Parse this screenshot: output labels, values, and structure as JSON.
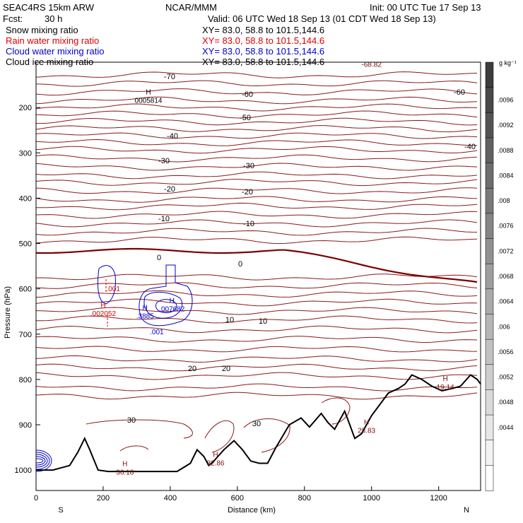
{
  "header": {
    "model": "SEAC4RS 15km ARW",
    "org": "NCAR/MMM",
    "init": "Init: 00 UTC Tue 17 Sep 13",
    "fcst_label": "Fcst:",
    "fcst_value": "30 h",
    "valid": "Valid: 06 UTC Wed 18 Sep 13 (01 CDT Wed 18 Sep 13)"
  },
  "legend": [
    {
      "label": "Snow mixing ratio",
      "xy": "XY=  83.0, 58.8 to 101.5,144.6",
      "color": "#000000"
    },
    {
      "label": "Rain water mixing ratio",
      "xy": "XY=  83.0, 58.8 to 101.5,144.6",
      "color": "#dd0000"
    },
    {
      "label": "Cloud water mixing ratio",
      "xy": "XY=  83.0, 58.8 to 101.5,144.6",
      "color": "#0000cc"
    },
    {
      "label": "Cloud ice mixing ratio",
      "xy": "XY=  83.0, 58.8 to 101.5,144.6",
      "color": "#000000"
    }
  ],
  "chart_data": {
    "type": "contour",
    "xlabel": "Distance (km)",
    "ylabel": "Pressure (hPa)",
    "xlim": [
      0,
      1325
    ],
    "ylim": [
      100,
      1045
    ],
    "x_ticks": [
      0,
      200,
      400,
      600,
      800,
      1000,
      1200
    ],
    "y_ticks": [
      200,
      300,
      400,
      500,
      600,
      700,
      800,
      900,
      1000
    ],
    "endpoints": {
      "left": "S",
      "right": "N"
    },
    "temperature_contours": [
      {
        "value": -70,
        "labels": [
          "-70"
        ]
      },
      {
        "value": -60,
        "labels": [
          "-60",
          "-60"
        ]
      },
      {
        "value": -50,
        "labels": [
          "-50"
        ]
      },
      {
        "value": -40,
        "labels": [
          "-40",
          "-40"
        ]
      },
      {
        "value": -30,
        "labels": [
          "-30",
          "-30"
        ]
      },
      {
        "value": -20,
        "labels": [
          "-20",
          "-20"
        ]
      },
      {
        "value": -10,
        "labels": [
          "-10",
          "-10"
        ]
      },
      {
        "value": 0,
        "labels": [
          "0",
          "0"
        ]
      },
      {
        "value": 10,
        "labels": [
          "10",
          "10"
        ]
      },
      {
        "value": 20,
        "labels": [
          "20",
          "20"
        ]
      },
      {
        "value": 30,
        "labels": [
          "30",
          "30"
        ]
      }
    ],
    "extrema": [
      {
        "type": "H",
        "value": "0005814",
        "x": 335,
        "p": 190,
        "color": "#000000"
      },
      {
        "type": "",
        "value": "-68.82",
        "x": 1000,
        "p": 110,
        "color": "#7a1010"
      },
      {
        "type": "H",
        "value": ".002052",
        "x": 200,
        "p": 660,
        "color": "#dd0000"
      },
      {
        "type": "",
        "value": ".001",
        "x": 230,
        "p": 605,
        "color": "#dd0000"
      },
      {
        "type": "H",
        "value": ".3885",
        "x": 325,
        "p": 665,
        "color": "#0000cc"
      },
      {
        "type": "H",
        "value": ".007682",
        "x": 405,
        "p": 650,
        "color": "#0000cc"
      },
      {
        "type": "",
        "value": ".001",
        "x": 360,
        "p": 700,
        "color": "#0000cc"
      },
      {
        "type": "H",
        "value": "19.14",
        "x": 1220,
        "p": 822,
        "color": "#7a1010"
      },
      {
        "type": "H",
        "value": "28.83",
        "x": 985,
        "p": 918,
        "color": "#7a1010"
      },
      {
        "type": "H",
        "value": "32.86",
        "x": 535,
        "p": 990,
        "color": "#7a1010"
      },
      {
        "type": "H",
        "value": "36.18",
        "x": 265,
        "p": 1010,
        "color": "#7a1010"
      }
    ],
    "colorbar": {
      "units": "g kg⁻¹",
      "ticks": [
        ".0096",
        ".0092",
        ".0088",
        ".0084",
        ".008",
        ".0076",
        ".0072",
        ".0068",
        ".0064",
        ".006",
        ".0056",
        ".0052",
        ".0048",
        ".0044"
      ]
    },
    "terrain": [
      [
        0,
        1000
      ],
      [
        50,
        1000
      ],
      [
        100,
        990
      ],
      [
        125,
        960
      ],
      [
        145,
        930
      ],
      [
        160,
        955
      ],
      [
        185,
        1000
      ],
      [
        215,
        1003
      ],
      [
        300,
        1003
      ],
      [
        420,
        1003
      ],
      [
        460,
        985
      ],
      [
        480,
        955
      ],
      [
        500,
        970
      ],
      [
        515,
        990
      ],
      [
        530,
        980
      ],
      [
        560,
        955
      ],
      [
        590,
        935
      ],
      [
        615,
        955
      ],
      [
        640,
        980
      ],
      [
        665,
        985
      ],
      [
        690,
        985
      ],
      [
        715,
        950
      ],
      [
        755,
        900
      ],
      [
        790,
        885
      ],
      [
        815,
        905
      ],
      [
        850,
        875
      ],
      [
        870,
        895
      ],
      [
        890,
        910
      ],
      [
        920,
        870
      ],
      [
        935,
        900
      ],
      [
        950,
        930
      ],
      [
        970,
        920
      ],
      [
        1000,
        880
      ],
      [
        1050,
        830
      ],
      [
        1080,
        820
      ],
      [
        1100,
        810
      ],
      [
        1120,
        790
      ],
      [
        1150,
        800
      ],
      [
        1180,
        815
      ],
      [
        1210,
        825
      ],
      [
        1240,
        820
      ],
      [
        1265,
        815
      ],
      [
        1295,
        790
      ],
      [
        1315,
        800
      ],
      [
        1325,
        810
      ]
    ]
  }
}
